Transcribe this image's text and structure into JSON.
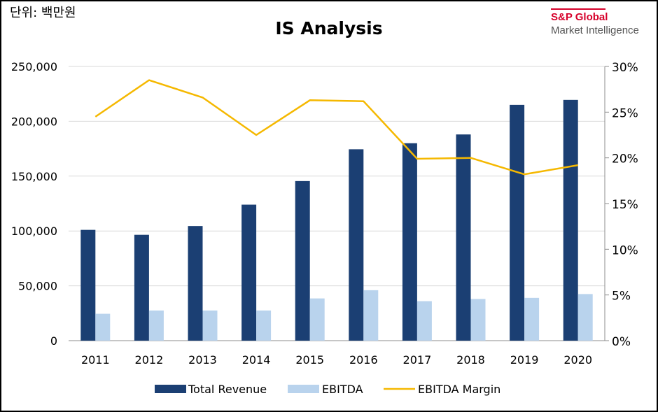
{
  "unit_label": "단위: 백만원",
  "brand": {
    "line1": "S&P Global",
    "line2": "Market Intelligence"
  },
  "colors": {
    "revenue": "#1b3f73",
    "ebitda": "#b9d3ed",
    "margin": "#f5b800",
    "grid": "#d9d9d9",
    "brand": "#d6002a"
  },
  "chart_data": {
    "type": "bar",
    "title": "IS Analysis",
    "categories": [
      "2011",
      "2012",
      "2013",
      "2014",
      "2015",
      "2016",
      "2017",
      "2018",
      "2019",
      "2020"
    ],
    "series": [
      {
        "name": "Total Revenue",
        "type": "bar",
        "axis": "left",
        "values": [
          101000,
          96500,
          104500,
          124000,
          145500,
          174500,
          180000,
          188000,
          215000,
          219500
        ]
      },
      {
        "name": "EBITDA",
        "type": "bar",
        "axis": "left",
        "values": [
          24500,
          27500,
          27500,
          27500,
          38500,
          46000,
          36000,
          38000,
          39000,
          42500
        ]
      },
      {
        "name": "EBITDA Margin",
        "type": "line",
        "axis": "right",
        "values": [
          24.5,
          28.5,
          26.6,
          22.5,
          26.3,
          26.2,
          19.9,
          20.0,
          18.2,
          19.2
        ]
      }
    ],
    "y_left": {
      "ylim": [
        0,
        250000
      ],
      "ticks": [
        0,
        50000,
        100000,
        150000,
        200000,
        250000
      ],
      "tick_labels": [
        "0",
        "50,000",
        "100,000",
        "150,000",
        "200,000",
        "250,000"
      ]
    },
    "y_right": {
      "ylim": [
        0,
        30
      ],
      "ticks": [
        0,
        5,
        10,
        15,
        20,
        25,
        30
      ],
      "tick_labels": [
        "0%",
        "5%",
        "10%",
        "15%",
        "20%",
        "25%",
        "30%"
      ]
    },
    "grid": true,
    "legend_position": "bottom"
  }
}
